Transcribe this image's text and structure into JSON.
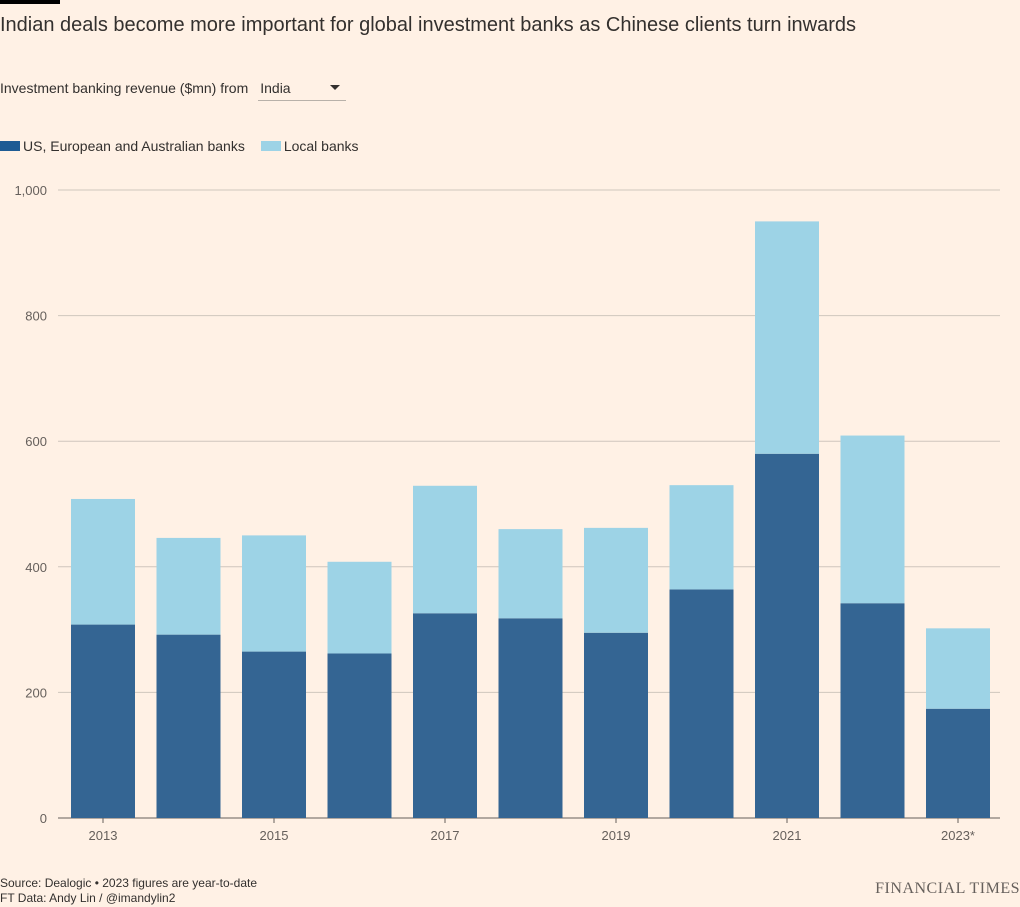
{
  "title": "Indian deals become more important for global investment banks as Chinese clients turn inwards",
  "selector": {
    "label": "Investment banking revenue ($mn) from",
    "value": "India"
  },
  "colors": {
    "foreign": "#346593",
    "local": "#9dd3e6",
    "background": "#fff1e5",
    "grid": "#cfc6bd"
  },
  "legend": {
    "foreign": "US, European and Australian banks",
    "local": "Local banks"
  },
  "chart_data": {
    "type": "bar",
    "stacked": true,
    "categories": [
      "2013",
      "2014",
      "2015",
      "2016",
      "2017",
      "2018",
      "2019",
      "2020",
      "2021",
      "2022",
      "2023*"
    ],
    "x_tick_labels": [
      "2013",
      "",
      "2015",
      "",
      "2017",
      "",
      "2019",
      "",
      "2021",
      "",
      "2023*"
    ],
    "series": [
      {
        "name": "US, European and Australian banks",
        "key": "foreign",
        "values": [
          308,
          292,
          265,
          262,
          326,
          318,
          295,
          364,
          580,
          342,
          174
        ]
      },
      {
        "name": "Local banks",
        "key": "local",
        "values": [
          200,
          154,
          185,
          146,
          203,
          142,
          167,
          166,
          370,
          267,
          128
        ]
      }
    ],
    "ylim": [
      0,
      1000
    ],
    "yticks": [
      0,
      200,
      400,
      600,
      800,
      1000
    ],
    "ytick_labels": [
      "0",
      "200",
      "400",
      "600",
      "800",
      "1,000"
    ],
    "grid": true,
    "legend_position": "top-left"
  },
  "footer": {
    "source": "Source: Dealogic • 2023 figures are year-to-date",
    "credit": "FT Data: Andy Lin / @imandylin2"
  },
  "brand": "FINANCIAL TIMES"
}
